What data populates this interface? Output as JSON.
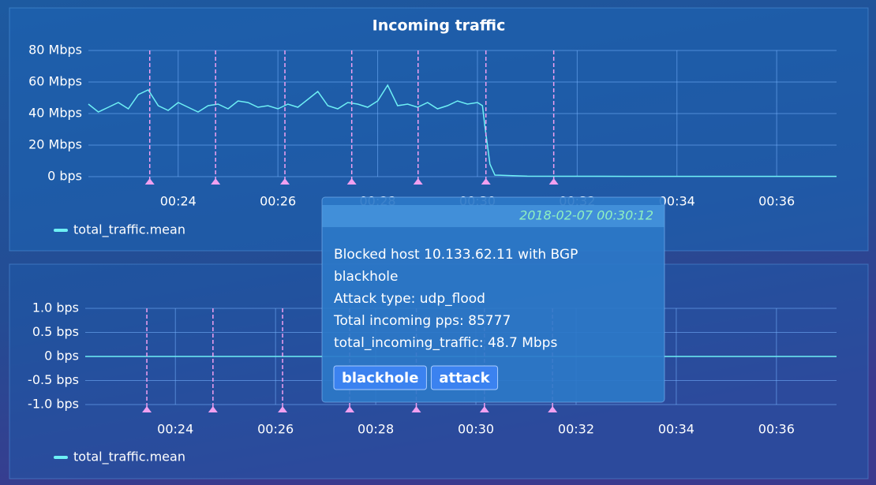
{
  "chart_data": [
    {
      "type": "line",
      "title": "Incoming traffic",
      "x": [
        22.2,
        22.4,
        22.6,
        22.8,
        23.0,
        23.2,
        23.4,
        23.6,
        23.8,
        24.0,
        24.2,
        24.4,
        24.6,
        24.8,
        25.0,
        25.2,
        25.4,
        25.6,
        25.8,
        26.0,
        26.2,
        26.4,
        26.6,
        26.8,
        27.0,
        27.2,
        27.4,
        27.6,
        27.8,
        28.0,
        28.2,
        28.4,
        28.6,
        28.8,
        29.0,
        29.2,
        29.4,
        29.6,
        29.8,
        30.0,
        30.1,
        30.15,
        30.25,
        30.35,
        31.0,
        33.0,
        37.2
      ],
      "series": [
        {
          "name": "total_traffic.mean",
          "color": "#6ef0f5",
          "values": [
            46,
            41,
            44,
            47,
            43,
            52,
            55,
            45,
            42,
            47,
            44,
            41,
            45,
            46,
            43,
            48,
            47,
            44,
            45,
            43,
            46,
            44,
            49,
            54,
            45,
            43,
            47,
            46,
            44,
            48,
            58,
            45,
            46,
            44,
            47,
            43,
            45,
            48,
            46,
            47,
            45,
            32,
            8,
            1,
            0.3,
            0.2,
            0.2
          ]
        }
      ],
      "xlim": [
        22.2,
        37.2
      ],
      "xticks": [
        {
          "value": 24,
          "label": "00:24"
        },
        {
          "value": 26,
          "label": "00:26"
        },
        {
          "value": 28,
          "label": "00:28"
        },
        {
          "value": 30,
          "label": "00:30"
        },
        {
          "value": 32,
          "label": "00:32"
        },
        {
          "value": 34,
          "label": "00:34"
        },
        {
          "value": 36,
          "label": "00:36"
        }
      ],
      "ylim": [
        0,
        80
      ],
      "yticks": [
        {
          "value": 0,
          "label": "0 bps"
        },
        {
          "value": 20,
          "label": "20 Mbps"
        },
        {
          "value": 40,
          "label": "40 Mbps"
        },
        {
          "value": 60,
          "label": "60 Mbps"
        },
        {
          "value": 80,
          "label": "80 Mbps"
        }
      ],
      "grid": true,
      "annotations": [
        23.43,
        24.75,
        26.14,
        27.48,
        28.81,
        30.17,
        31.53
      ],
      "annotation_color": "#f0a0f0"
    },
    {
      "type": "line",
      "x": [
        22.2,
        37.2
      ],
      "series": [
        {
          "name": "total_traffic.mean",
          "color": "#6ef0f5",
          "values": [
            0,
            0
          ]
        }
      ],
      "xlim": [
        22.2,
        37.2
      ],
      "xticks": [
        {
          "value": 24,
          "label": "00:24"
        },
        {
          "value": 26,
          "label": "00:26"
        },
        {
          "value": 28,
          "label": "00:28"
        },
        {
          "value": 30,
          "label": "00:30"
        },
        {
          "value": 32,
          "label": "00:32"
        },
        {
          "value": 34,
          "label": "00:34"
        },
        {
          "value": 36,
          "label": "00:36"
        }
      ],
      "ylim": [
        -1,
        1
      ],
      "yticks": [
        {
          "value": -1,
          "label": "-1.0 bps"
        },
        {
          "value": -0.5,
          "label": "-0.5 bps"
        },
        {
          "value": 0,
          "label": "0 bps"
        },
        {
          "value": 0.5,
          "label": "0.5 bps"
        },
        {
          "value": 1,
          "label": "1.0 bps"
        }
      ],
      "grid": true,
      "annotations": [
        23.43,
        24.75,
        26.14,
        27.48,
        28.81,
        30.17,
        31.53
      ],
      "annotation_color": "#f0a0f0"
    }
  ],
  "tooltip": {
    "time": "2018-02-07 00:30:12",
    "lines": [
      "Blocked host 10.133.62.11 with BGP",
      "blackhole",
      "Attack type: udp_flood",
      "Total incoming pps: 85777",
      "total_incoming_traffic: 48.7 Mbps"
    ],
    "tags": [
      "blackhole",
      "attack"
    ]
  }
}
